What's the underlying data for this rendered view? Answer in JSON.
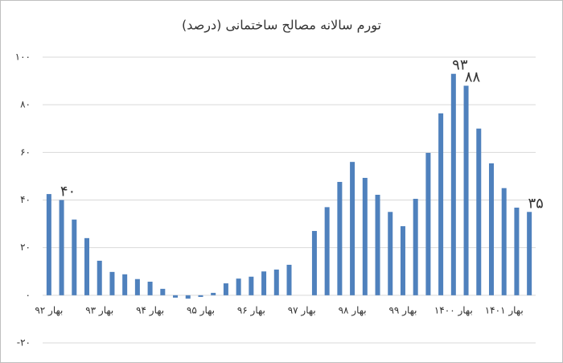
{
  "chart_data": {
    "type": "bar",
    "title": "تورم سالانه مصالح ساختمانی (درصد)",
    "categories": [
      "بهار ۹۲",
      null,
      null,
      null,
      "بهار ۹۳",
      null,
      null,
      null,
      "بهار ۹۴",
      null,
      null,
      null,
      "بهار ۹۵",
      null,
      null,
      null,
      "بهار ۹۶",
      null,
      null,
      null,
      "بهار ۹۷",
      null,
      null,
      null,
      "بهار ۹۸",
      null,
      null,
      null,
      "بهار ۹۹",
      null,
      null,
      null,
      "بهار ۱۴۰۰",
      null,
      null,
      null,
      "بهار ۱۴۰۱",
      null,
      null
    ],
    "values": [
      42.5,
      40,
      31.8,
      24,
      14.5,
      9.8,
      8.8,
      6.8,
      5.7,
      2.7,
      -1,
      -1.4,
      -0.7,
      1,
      5,
      7,
      7.8,
      10,
      10.8,
      12.8,
      null,
      27,
      37,
      47.6,
      56,
      49.3,
      42.2,
      35,
      29,
      40.5,
      59.8,
      76.4,
      93,
      88,
      70,
      55.4,
      45,
      36.8,
      35
    ],
    "value_labels": [
      null,
      "۴۰",
      null,
      null,
      null,
      null,
      null,
      null,
      null,
      null,
      null,
      null,
      null,
      null,
      null,
      null,
      null,
      null,
      null,
      null,
      null,
      null,
      null,
      null,
      null,
      null,
      null,
      null,
      null,
      null,
      null,
      null,
      "۹۳",
      "۸۸",
      null,
      null,
      null,
      null,
      "۳۵"
    ],
    "color": "#4f81bd",
    "ylim": [
      -20,
      100
    ],
    "yticks": [
      {
        "value": -20,
        "label": "-۲۰"
      },
      {
        "value": 0,
        "label": "۰"
      },
      {
        "value": 20,
        "label": "۲۰"
      },
      {
        "value": 40,
        "label": "۴۰"
      },
      {
        "value": 60,
        "label": "۶۰"
      },
      {
        "value": 80,
        "label": "۸۰"
      },
      {
        "value": 100,
        "label": "۱۰۰"
      }
    ],
    "grid": true
  }
}
